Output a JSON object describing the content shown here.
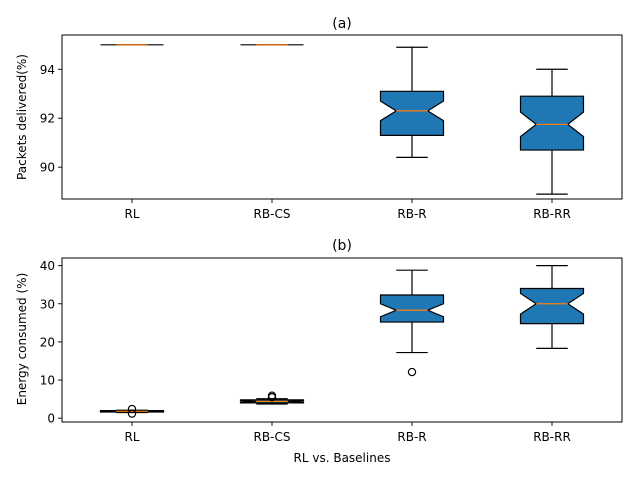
{
  "figure": {
    "xlabel": "RL vs. Baselines"
  },
  "colors": {
    "box_fill": "#1f77b4",
    "median": "#ff7f0e",
    "outline": "#000000"
  },
  "chart_data": [
    {
      "type": "boxplot",
      "title": "(a)",
      "ylabel": "Packets delivered(%)",
      "xlabel": "",
      "categories": [
        "RL",
        "RB-CS",
        "RB-R",
        "RB-RR"
      ],
      "ylim": [
        88.7,
        95.4
      ],
      "yticks": [
        90,
        92,
        94
      ],
      "notched": true,
      "boxes": [
        {
          "label": "RL",
          "whisker_low": 95.0,
          "q1": 95.0,
          "median": 95.0,
          "q3": 95.0,
          "whisker_high": 95.0,
          "notch_low": 95.0,
          "notch_high": 95.0,
          "fliers": []
        },
        {
          "label": "RB-CS",
          "whisker_low": 95.0,
          "q1": 95.0,
          "median": 95.0,
          "q3": 95.0,
          "whisker_high": 95.0,
          "notch_low": 95.0,
          "notch_high": 95.0,
          "fliers": []
        },
        {
          "label": "RB-R",
          "whisker_low": 90.4,
          "q1": 91.3,
          "median": 92.3,
          "q3": 93.1,
          "whisker_high": 94.9,
          "notch_low": 91.9,
          "notch_high": 92.7,
          "fliers": []
        },
        {
          "label": "RB-RR",
          "whisker_low": 88.9,
          "q1": 90.7,
          "median": 91.75,
          "q3": 92.9,
          "whisker_high": 94.0,
          "notch_low": 91.25,
          "notch_high": 92.25,
          "fliers": []
        }
      ]
    },
    {
      "type": "boxplot",
      "title": "(b)",
      "ylabel": "Energy consumed (%)",
      "xlabel": "RL vs. Baselines",
      "categories": [
        "RL",
        "RB-CS",
        "RB-R",
        "RB-RR"
      ],
      "ylim": [
        -1,
        42
      ],
      "yticks": [
        0,
        10,
        20,
        30,
        40
      ],
      "notched": true,
      "boxes": [
        {
          "label": "RL",
          "whisker_low": 1.5,
          "q1": 1.6,
          "median": 1.8,
          "q3": 2.0,
          "whisker_high": 2.1,
          "notch_low": 1.7,
          "notch_high": 1.9,
          "fliers": [
            1.2,
            2.4
          ]
        },
        {
          "label": "RB-CS",
          "whisker_low": 3.7,
          "q1": 4.0,
          "median": 4.4,
          "q3": 4.8,
          "whisker_high": 5.1,
          "notch_low": 4.2,
          "notch_high": 4.6,
          "fliers": [
            5.5,
            5.9
          ]
        },
        {
          "label": "RB-R",
          "whisker_low": 17.2,
          "q1": 25.2,
          "median": 28.3,
          "q3": 32.3,
          "whisker_high": 38.8,
          "notch_low": 26.6,
          "notch_high": 30.0,
          "fliers": [
            12.1
          ]
        },
        {
          "label": "RB-RR",
          "whisker_low": 18.3,
          "q1": 24.8,
          "median": 30.0,
          "q3": 34.0,
          "whisker_high": 40.0,
          "notch_low": 27.3,
          "notch_high": 32.7,
          "fliers": []
        }
      ]
    }
  ]
}
